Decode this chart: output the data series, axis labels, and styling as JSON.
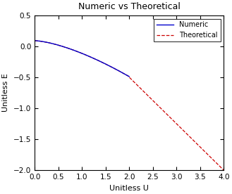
{
  "title": "Numeric vs Theoretical",
  "xlabel": "Unitless U",
  "ylabel": "Unitless E",
  "xlim": [
    0,
    4
  ],
  "ylim": [
    -2,
    0.5
  ],
  "xticks": [
    0,
    0.5,
    1,
    1.5,
    2,
    2.5,
    3,
    3.5,
    4
  ],
  "yticks": [
    -2,
    -1.5,
    -1,
    -0.5,
    0,
    0.5
  ],
  "numeric_color": "#0000cc",
  "theoretical_color": "#cc0000",
  "numeric_label": "Numeric",
  "theoretical_label": "Theoretical",
  "E0": 0.09,
  "a_coeff": 0.205,
  "power": 1.5,
  "U_numeric_end": 2.0,
  "th_slope": -0.75,
  "th_junction_E": -0.5,
  "th_junction_U": 2.0,
  "background_color": "#ffffff",
  "legend_loc": "upper right"
}
